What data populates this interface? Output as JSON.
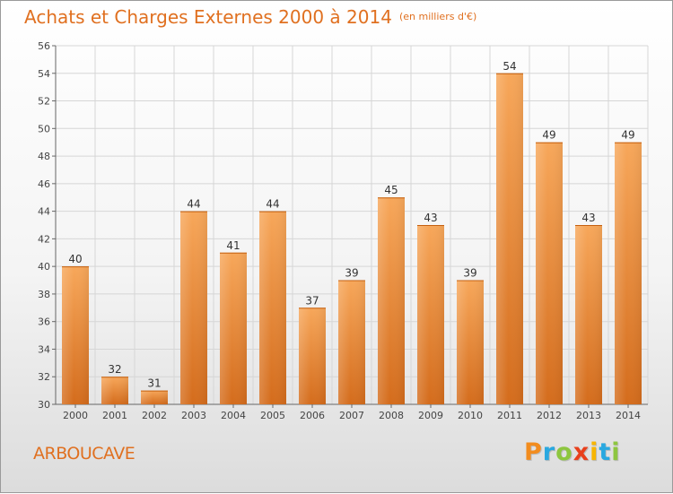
{
  "header": {
    "title": "Achats et Charges Externes 2000 à 2014",
    "subtitle": "(en milliers d'€)"
  },
  "footer": {
    "commune": "ARBOUCAVE",
    "logo_text": "Proxiti"
  },
  "colors": {
    "accent": "#e07020",
    "bar_top": "#f7a75a",
    "bar_bottom": "#d46c1c",
    "grid": "#d6d6d6",
    "axis_text": "#444444"
  },
  "chart_data": {
    "type": "bar",
    "title": "Achats et Charges Externes 2000 à 2014",
    "subtitle": "(en milliers d'€)",
    "categories": [
      "2000",
      "2001",
      "2002",
      "2003",
      "2004",
      "2005",
      "2006",
      "2007",
      "2008",
      "2009",
      "2010",
      "2011",
      "2012",
      "2013",
      "2014"
    ],
    "values": [
      40,
      32,
      31,
      44,
      41,
      44,
      37,
      39,
      45,
      43,
      39,
      54,
      49,
      43,
      49
    ],
    "ylim": [
      30,
      56
    ],
    "yticks": [
      30,
      32,
      34,
      36,
      38,
      40,
      42,
      44,
      46,
      48,
      50,
      52,
      54,
      56
    ],
    "grid": true,
    "data_labels": true
  }
}
